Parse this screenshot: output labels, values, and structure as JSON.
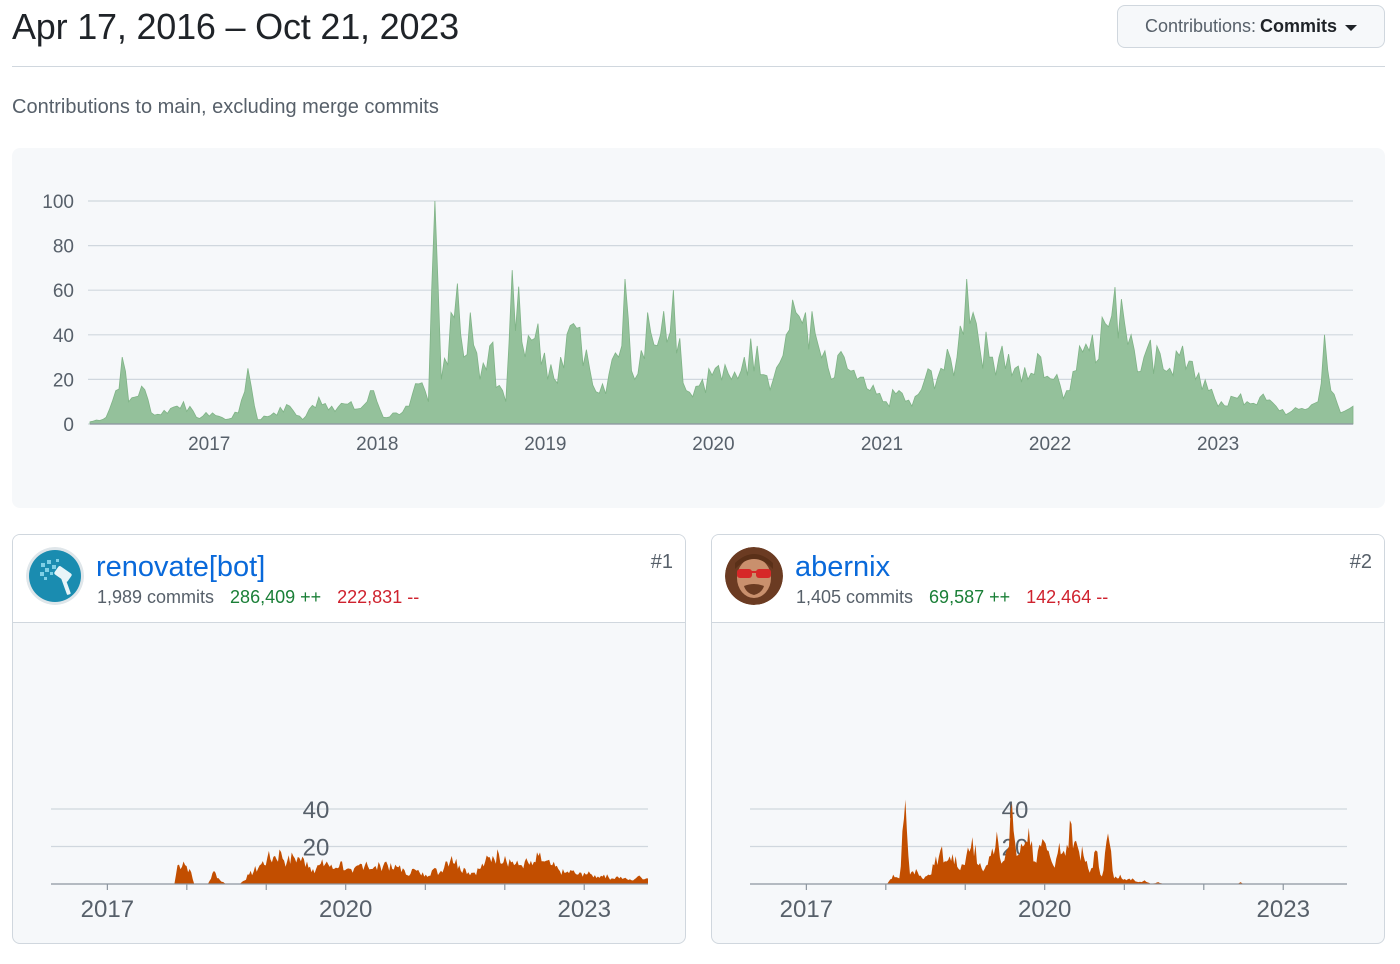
{
  "header": {
    "date_range": "Apr 17, 2016 – Oct 21, 2023",
    "contributions_label": "Contributions:",
    "contributions_value": "Commits"
  },
  "subtitle": "Contributions to main, excluding merge commits",
  "colors": {
    "main_area": "#94c19b",
    "main_stroke": "#7fb386",
    "contributor_area": "#c24e00",
    "link": "#0969da",
    "additions": "#1a7f37",
    "deletions": "#cf222e"
  },
  "chart_data": [
    {
      "type": "area",
      "yticks": [
        "0",
        "20",
        "40",
        "60",
        "80",
        "100"
      ],
      "xticks": [
        "2017",
        "2018",
        "2019",
        "2020",
        "2021",
        "2022",
        "2023"
      ],
      "ylim": [
        0,
        100
      ],
      "xlim": [
        "2016-04-17",
        "2023-10-21"
      ],
      "grid": true,
      "series": [
        {
          "values": [
            [
              "2016-04-17",
              1
            ],
            [
              "2016-05-22",
              3
            ],
            [
              "2016-06-12",
              15
            ],
            [
              "2016-06-26",
              30
            ],
            [
              "2016-07-10",
              10
            ],
            [
              "2016-08-07",
              17
            ],
            [
              "2016-09-04",
              4
            ],
            [
              "2016-10-09",
              7
            ],
            [
              "2016-11-06",
              10
            ],
            [
              "2016-12-04",
              3
            ],
            [
              "2017-01-08",
              5
            ],
            [
              "2017-02-05",
              2
            ],
            [
              "2017-03-05",
              5
            ],
            [
              "2017-03-26",
              25
            ],
            [
              "2017-04-16",
              2
            ],
            [
              "2017-05-21",
              5
            ],
            [
              "2017-06-25",
              8
            ],
            [
              "2017-07-23",
              2
            ],
            [
              "2017-08-27",
              12
            ],
            [
              "2017-09-24",
              8
            ],
            [
              "2017-10-22",
              9
            ],
            [
              "2017-11-26",
              7
            ],
            [
              "2017-12-24",
              15
            ],
            [
              "2018-01-14",
              3
            ],
            [
              "2018-02-11",
              5
            ],
            [
              "2018-03-11",
              8
            ],
            [
              "2018-04-01",
              18
            ],
            [
              "2018-04-22",
              10
            ],
            [
              "2018-05-06",
              100
            ],
            [
              "2018-05-20",
              20
            ],
            [
              "2018-06-10",
              50
            ],
            [
              "2018-06-24",
              63
            ],
            [
              "2018-07-08",
              30
            ],
            [
              "2018-07-22",
              50
            ],
            [
              "2018-08-12",
              20
            ],
            [
              "2018-09-02",
              35
            ],
            [
              "2018-10-07",
              10
            ],
            [
              "2018-10-21",
              69
            ],
            [
              "2018-11-18",
              30
            ],
            [
              "2018-12-16",
              45
            ],
            [
              "2019-01-06",
              20
            ],
            [
              "2019-02-03",
              30
            ],
            [
              "2019-03-03",
              45
            ],
            [
              "2019-04-07",
              25
            ],
            [
              "2019-05-05",
              18
            ],
            [
              "2019-06-09",
              30
            ],
            [
              "2019-06-23",
              65
            ],
            [
              "2019-07-14",
              20
            ],
            [
              "2019-08-11",
              50
            ],
            [
              "2019-09-08",
              40
            ],
            [
              "2019-10-06",
              60
            ],
            [
              "2019-11-03",
              15
            ],
            [
              "2019-12-08",
              20
            ],
            [
              "2020-01-05",
              25
            ],
            [
              "2020-02-09",
              20
            ],
            [
              "2020-03-08",
              30
            ],
            [
              "2020-04-05",
              35
            ],
            [
              "2020-05-10",
              20
            ],
            [
              "2020-06-07",
              40
            ],
            [
              "2020-06-28",
              50
            ],
            [
              "2020-07-19",
              50
            ],
            [
              "2020-08-16",
              35
            ],
            [
              "2020-09-13",
              20
            ],
            [
              "2020-10-11",
              30
            ],
            [
              "2020-11-08",
              20
            ],
            [
              "2020-12-06",
              15
            ],
            [
              "2021-01-10",
              10
            ],
            [
              "2021-02-07",
              15
            ],
            [
              "2021-03-07",
              8
            ],
            [
              "2021-04-04",
              20
            ],
            [
              "2021-05-09",
              25
            ],
            [
              "2021-06-13",
              30
            ],
            [
              "2021-07-04",
              65
            ],
            [
              "2021-07-25",
              45
            ],
            [
              "2021-08-22",
              30
            ],
            [
              "2021-09-19",
              35
            ],
            [
              "2021-10-17",
              25
            ],
            [
              "2021-11-14",
              20
            ],
            [
              "2021-12-12",
              30
            ],
            [
              "2022-01-09",
              20
            ],
            [
              "2022-02-06",
              15
            ],
            [
              "2022-03-06",
              35
            ],
            [
              "2022-04-03",
              40
            ],
            [
              "2022-05-01",
              45
            ],
            [
              "2022-06-05",
              56
            ],
            [
              "2022-06-26",
              40
            ],
            [
              "2022-07-24",
              30
            ],
            [
              "2022-08-21",
              35
            ],
            [
              "2022-09-18",
              25
            ],
            [
              "2022-10-16",
              35
            ],
            [
              "2022-11-13",
              20
            ],
            [
              "2022-12-11",
              15
            ],
            [
              "2023-01-08",
              10
            ],
            [
              "2023-02-05",
              12
            ],
            [
              "2023-03-05",
              10
            ],
            [
              "2023-04-02",
              12
            ],
            [
              "2023-05-07",
              8
            ],
            [
              "2023-06-04",
              5
            ],
            [
              "2023-07-02",
              7
            ],
            [
              "2023-08-06",
              10
            ],
            [
              "2023-08-20",
              40
            ],
            [
              "2023-09-03",
              15
            ],
            [
              "2023-09-24",
              5
            ],
            [
              "2023-10-21",
              8
            ]
          ]
        }
      ]
    },
    {
      "type": "area",
      "yticks": [
        "20",
        "40"
      ],
      "xticks": [
        "2017",
        "2020",
        "2023"
      ],
      "ylim": [
        0,
        40
      ],
      "xlim": [
        "2016-04-17",
        "2023-10-21"
      ],
      "grid": true,
      "series": [
        {
          "values": [
            [
              "2016-04-17",
              0
            ],
            [
              "2017-11-05",
              0
            ],
            [
              "2017-11-19",
              10
            ],
            [
              "2017-12-17",
              12
            ],
            [
              "2018-01-14",
              8
            ],
            [
              "2018-02-04",
              0
            ],
            [
              "2018-04-08",
              0
            ],
            [
              "2018-05-06",
              7
            ],
            [
              "2018-06-03",
              2
            ],
            [
              "2018-07-01",
              0
            ],
            [
              "2018-09-02",
              0
            ],
            [
              "2018-10-14",
              5
            ],
            [
              "2018-12-02",
              10
            ],
            [
              "2019-01-06",
              14
            ],
            [
              "2019-02-10",
              15
            ],
            [
              "2019-03-10",
              17
            ],
            [
              "2019-04-07",
              12
            ],
            [
              "2019-05-05",
              15
            ],
            [
              "2019-06-02",
              14
            ],
            [
              "2019-07-07",
              12
            ],
            [
              "2019-08-04",
              8
            ],
            [
              "2019-09-01",
              10
            ],
            [
              "2019-10-06",
              12
            ],
            [
              "2019-11-03",
              8
            ],
            [
              "2019-12-08",
              12
            ],
            [
              "2020-01-05",
              8
            ],
            [
              "2020-02-02",
              6
            ],
            [
              "2020-03-01",
              10
            ],
            [
              "2020-04-05",
              12
            ],
            [
              "2020-05-03",
              8
            ],
            [
              "2020-06-07",
              10
            ],
            [
              "2020-07-05",
              12
            ],
            [
              "2020-08-02",
              8
            ],
            [
              "2020-09-06",
              10
            ],
            [
              "2020-10-04",
              5
            ],
            [
              "2020-11-01",
              8
            ],
            [
              "2020-12-06",
              6
            ],
            [
              "2021-01-03",
              5
            ],
            [
              "2021-02-07",
              8
            ],
            [
              "2021-03-07",
              6
            ],
            [
              "2021-04-04",
              12
            ],
            [
              "2021-05-02",
              15
            ],
            [
              "2021-06-06",
              10
            ],
            [
              "2021-07-04",
              8
            ],
            [
              "2021-08-01",
              6
            ],
            [
              "2021-09-05",
              8
            ],
            [
              "2021-10-03",
              12
            ],
            [
              "2021-11-07",
              15
            ],
            [
              "2021-12-05",
              16
            ],
            [
              "2022-01-02",
              15
            ],
            [
              "2022-02-06",
              12
            ],
            [
              "2022-03-06",
              10
            ],
            [
              "2022-04-03",
              12
            ],
            [
              "2022-05-08",
              10
            ],
            [
              "2022-06-05",
              15
            ],
            [
              "2022-07-03",
              12
            ],
            [
              "2022-08-07",
              10
            ],
            [
              "2022-09-04",
              8
            ],
            [
              "2022-10-02",
              6
            ],
            [
              "2022-11-06",
              7
            ],
            [
              "2022-12-04",
              5
            ],
            [
              "2023-01-01",
              6
            ],
            [
              "2023-02-05",
              5
            ],
            [
              "2023-03-05",
              4
            ],
            [
              "2023-04-02",
              5
            ],
            [
              "2023-05-07",
              3
            ],
            [
              "2023-06-04",
              4
            ],
            [
              "2023-07-02",
              3
            ],
            [
              "2023-08-06",
              2
            ],
            [
              "2023-09-03",
              4
            ],
            [
              "2023-10-21",
              3
            ]
          ]
        }
      ]
    },
    {
      "type": "area",
      "yticks": [
        "20",
        "40"
      ],
      "xticks": [
        "2017",
        "2020",
        "2023"
      ],
      "ylim": [
        0,
        40
      ],
      "xlim": [
        "2016-04-17",
        "2023-10-21"
      ],
      "grid": true,
      "series": [
        {
          "values": [
            [
              "2016-04-17",
              0
            ],
            [
              "2018-01-07",
              0
            ],
            [
              "2018-02-04",
              5
            ],
            [
              "2018-03-04",
              3
            ],
            [
              "2018-04-01",
              45
            ],
            [
              "2018-04-22",
              5
            ],
            [
              "2018-05-20",
              8
            ],
            [
              "2018-06-17",
              3
            ],
            [
              "2018-07-15",
              5
            ],
            [
              "2018-08-12",
              10
            ],
            [
              "2018-09-09",
              18
            ],
            [
              "2018-10-07",
              12
            ],
            [
              "2018-11-04",
              16
            ],
            [
              "2018-12-02",
              8
            ],
            [
              "2019-01-06",
              15
            ],
            [
              "2019-02-03",
              25
            ],
            [
              "2019-03-03",
              10
            ],
            [
              "2019-03-31",
              8
            ],
            [
              "2019-04-28",
              15
            ],
            [
              "2019-05-26",
              28
            ],
            [
              "2019-06-23",
              12
            ],
            [
              "2019-07-21",
              20
            ],
            [
              "2019-08-04",
              43
            ],
            [
              "2019-08-25",
              15
            ],
            [
              "2019-09-22",
              20
            ],
            [
              "2019-10-20",
              30
            ],
            [
              "2019-11-17",
              12
            ],
            [
              "2019-12-15",
              20
            ],
            [
              "2020-01-12",
              18
            ],
            [
              "2020-02-09",
              10
            ],
            [
              "2020-03-08",
              22
            ],
            [
              "2020-04-05",
              15
            ],
            [
              "2020-05-03",
              32
            ],
            [
              "2020-05-31",
              20
            ],
            [
              "2020-06-28",
              15
            ],
            [
              "2020-07-26",
              6
            ],
            [
              "2020-08-23",
              18
            ],
            [
              "2020-09-20",
              4
            ],
            [
              "2020-10-18",
              27
            ],
            [
              "2020-11-15",
              3
            ],
            [
              "2020-12-13",
              5
            ],
            [
              "2021-01-10",
              2
            ],
            [
              "2021-02-07",
              3
            ],
            [
              "2021-03-07",
              1
            ],
            [
              "2021-04-04",
              2
            ],
            [
              "2021-05-02",
              0
            ],
            [
              "2021-06-06",
              1
            ],
            [
              "2021-07-04",
              0
            ],
            [
              "2022-06-05",
              0
            ],
            [
              "2022-06-19",
              1
            ],
            [
              "2022-07-03",
              0
            ],
            [
              "2023-10-21",
              0
            ]
          ]
        }
      ]
    }
  ],
  "contributors": [
    {
      "name": "renovate[bot]",
      "commits": "1,989 commits",
      "additions": "286,409 ++",
      "deletions": "222,831 --",
      "rank": "#1"
    },
    {
      "name": "abernix",
      "commits": "1,405 commits",
      "additions": "69,587 ++",
      "deletions": "142,464 --",
      "rank": "#2"
    }
  ]
}
